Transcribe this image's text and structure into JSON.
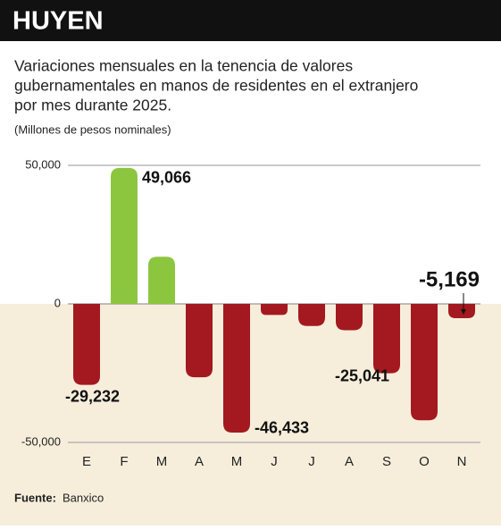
{
  "chart_data": {
    "type": "bar",
    "title": "HUYEN",
    "subtitle": [
      "Variaciones mensuales en la tenencia de valores",
      "gubernamentales en manos de residentes en el extranjero",
      "por mes durante 2025."
    ],
    "units": "(Millones de pesos nominales)",
    "categories": [
      "E",
      "F",
      "M",
      "A",
      "M",
      "J",
      "J",
      "A",
      "S",
      "O",
      "N"
    ],
    "values": [
      -29232,
      49066,
      17000,
      -26500,
      -46433,
      -4000,
      -8000,
      -9500,
      -25041,
      -42000,
      -5169
    ],
    "value_labels": [
      "-29,232",
      "49,066",
      null,
      null,
      "-46,433",
      null,
      null,
      null,
      "-25,041",
      null,
      "-5,169"
    ],
    "positive_color": "#8cc63f",
    "negative_color": "#a3191f",
    "ylim": [
      -50000,
      50000
    ],
    "yticks": [
      {
        "value": -50000,
        "label": "-50,000"
      },
      0,
      {
        "value": 50000,
        "label": "50,000"
      }
    ],
    "grid": true,
    "source_label": "Fuente:",
    "source": "Banxico"
  }
}
